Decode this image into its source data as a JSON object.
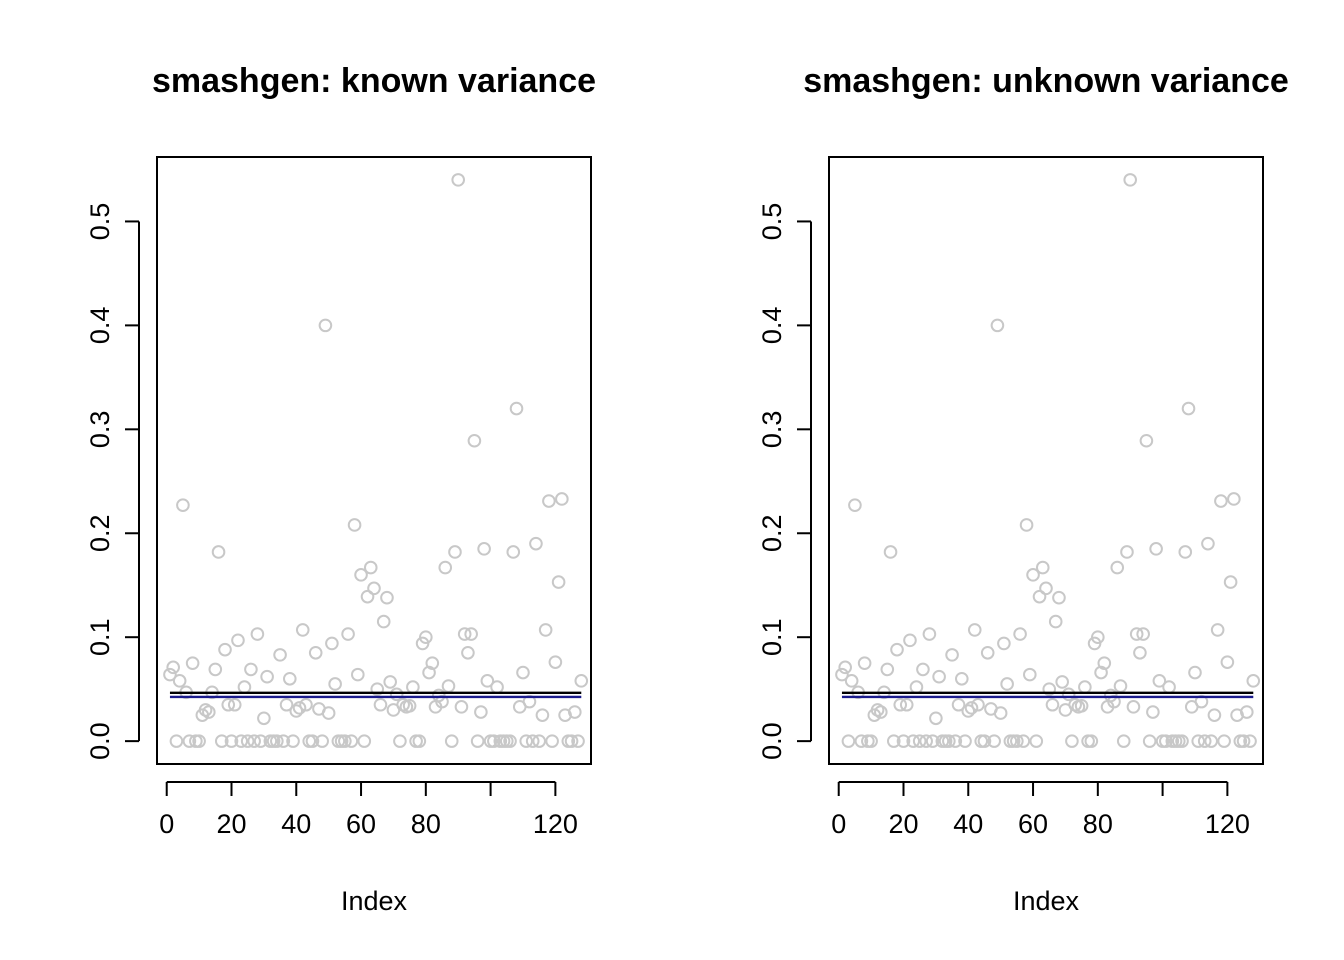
{
  "colors": {
    "points": "#c8c8c8",
    "line_black": "#000000",
    "line_navy": "#1a1a8c",
    "axis": "#000000"
  },
  "chart_data": [
    {
      "type": "scatter",
      "title": "smashgen: known variance",
      "xlabel": "Index",
      "ylabel": "",
      "xlim": [
        -3,
        131
      ],
      "ylim": [
        -0.022,
        0.562
      ],
      "x_ticks": [
        0,
        20,
        40,
        60,
        80,
        100,
        120
      ],
      "x_tick_labels": [
        "0",
        "20",
        "40",
        "60",
        "80",
        "",
        "120"
      ],
      "y_ticks": [
        0.0,
        0.1,
        0.2,
        0.3,
        0.4,
        0.5
      ],
      "y_tick_labels": [
        "0.0",
        "0.1",
        "0.2",
        "0.3",
        "0.4",
        "0.5"
      ],
      "grid": false,
      "legend": "none",
      "series": [
        {
          "values": [
            0.064,
            0.071,
            0.0,
            0.058,
            0.227,
            0.047,
            0.0,
            0.075,
            0.0,
            0.0,
            0.025,
            0.03,
            0.028,
            0.047,
            0.069,
            0.182,
            0.0,
            0.088,
            0.035,
            0.0,
            0.035,
            0.097,
            0.0,
            0.052,
            0.0,
            0.069,
            0.0,
            0.103,
            0.0,
            0.022,
            0.062,
            0.0,
            0.0,
            0.0,
            0.083,
            0.0,
            0.035,
            0.06,
            0.0,
            0.029,
            0.032,
            0.107,
            0.035,
            0.0,
            0.0,
            0.085,
            0.031,
            0.0,
            0.4,
            0.027,
            0.094,
            0.055,
            0.0,
            0.0,
            0.0,
            0.103,
            0.0,
            0.208,
            0.064,
            0.16,
            0.0,
            0.139,
            0.167,
            0.147,
            0.05,
            0.035,
            0.115,
            0.138,
            0.057,
            0.03,
            0.045,
            0.0,
            0.035,
            0.033,
            0.034,
            0.052,
            0.0,
            0.0,
            0.094,
            0.1,
            0.066,
            0.075,
            0.033,
            0.044,
            0.038,
            0.167,
            0.053,
            0.0,
            0.182,
            0.54,
            0.033,
            0.103,
            0.085,
            0.103,
            0.289,
            0.0,
            0.028,
            0.185,
            0.058,
            0.0,
            0.0,
            0.052,
            0.0,
            0.0,
            0.0,
            0.0,
            0.182,
            0.32,
            0.033,
            0.066,
            0.0,
            0.038,
            0.0,
            0.19,
            0.0,
            0.025,
            0.107,
            0.231,
            0.0,
            0.076,
            0.153,
            0.233,
            0.025,
            0.0,
            0.0,
            0.028,
            0.0,
            0.058
          ]
        }
      ],
      "lines": [
        {
          "y": 0.0465,
          "color": "#000000"
        },
        {
          "y": 0.0425,
          "color": "#1a1a8c"
        }
      ]
    },
    {
      "type": "scatter",
      "title": "smashgen: unknown variance",
      "xlabel": "Index",
      "ylabel": "",
      "xlim": [
        -3,
        131
      ],
      "ylim": [
        -0.022,
        0.562
      ],
      "x_ticks": [
        0,
        20,
        40,
        60,
        80,
        100,
        120
      ],
      "x_tick_labels": [
        "0",
        "20",
        "40",
        "60",
        "80",
        "",
        "120"
      ],
      "y_ticks": [
        0.0,
        0.1,
        0.2,
        0.3,
        0.4,
        0.5
      ],
      "y_tick_labels": [
        "0.0",
        "0.1",
        "0.2",
        "0.3",
        "0.4",
        "0.5"
      ],
      "grid": false,
      "legend": "none",
      "series": [
        {
          "values": [
            0.064,
            0.071,
            0.0,
            0.058,
            0.227,
            0.047,
            0.0,
            0.075,
            0.0,
            0.0,
            0.025,
            0.03,
            0.028,
            0.047,
            0.069,
            0.182,
            0.0,
            0.088,
            0.035,
            0.0,
            0.035,
            0.097,
            0.0,
            0.052,
            0.0,
            0.069,
            0.0,
            0.103,
            0.0,
            0.022,
            0.062,
            0.0,
            0.0,
            0.0,
            0.083,
            0.0,
            0.035,
            0.06,
            0.0,
            0.029,
            0.032,
            0.107,
            0.035,
            0.0,
            0.0,
            0.085,
            0.031,
            0.0,
            0.4,
            0.027,
            0.094,
            0.055,
            0.0,
            0.0,
            0.0,
            0.103,
            0.0,
            0.208,
            0.064,
            0.16,
            0.0,
            0.139,
            0.167,
            0.147,
            0.05,
            0.035,
            0.115,
            0.138,
            0.057,
            0.03,
            0.045,
            0.0,
            0.035,
            0.033,
            0.034,
            0.052,
            0.0,
            0.0,
            0.094,
            0.1,
            0.066,
            0.075,
            0.033,
            0.044,
            0.038,
            0.167,
            0.053,
            0.0,
            0.182,
            0.54,
            0.033,
            0.103,
            0.085,
            0.103,
            0.289,
            0.0,
            0.028,
            0.185,
            0.058,
            0.0,
            0.0,
            0.052,
            0.0,
            0.0,
            0.0,
            0.0,
            0.182,
            0.32,
            0.033,
            0.066,
            0.0,
            0.038,
            0.0,
            0.19,
            0.0,
            0.025,
            0.107,
            0.231,
            0.0,
            0.076,
            0.153,
            0.233,
            0.025,
            0.0,
            0.0,
            0.028,
            0.0,
            0.058
          ]
        }
      ],
      "lines": [
        {
          "y": 0.0465,
          "color": "#000000"
        },
        {
          "y": 0.0425,
          "color": "#1a1a8c"
        }
      ]
    }
  ]
}
